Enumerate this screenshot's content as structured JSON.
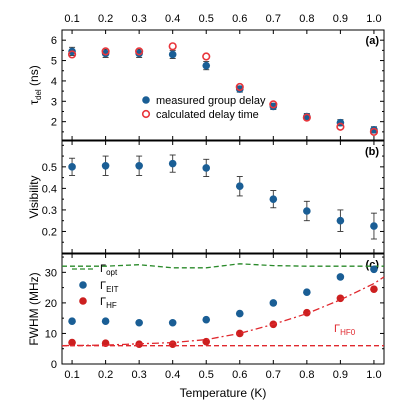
{
  "chart_data": [
    {
      "type": "scatter",
      "panel_label": "(a)",
      "ylabel_main": "τ",
      "ylabel_sub": "del",
      "ylabel_unit": " (ns)",
      "ylim": [
        1.1,
        6.5
      ],
      "yticks": [
        2,
        3,
        4,
        5,
        6
      ],
      "legend_placement": "center-right",
      "series": [
        {
          "name": "measured group delay",
          "marker": "filled-circle",
          "color": "#1a5e95",
          "x": [
            0.1,
            0.2,
            0.3,
            0.4,
            0.5,
            0.6,
            0.7,
            0.8,
            0.9,
            1.0
          ],
          "y": [
            5.45,
            5.35,
            5.35,
            5.3,
            4.75,
            3.6,
            2.75,
            2.25,
            1.95,
            1.6
          ],
          "yerr": [
            0.2,
            0.2,
            0.2,
            0.2,
            0.2,
            0.15,
            0.15,
            0.15,
            0.15,
            0.15
          ]
        },
        {
          "name": "calculated delay time",
          "marker": "open-circle",
          "color": "#e8353b",
          "x": [
            0.1,
            0.2,
            0.3,
            0.4,
            0.5,
            0.6,
            0.7,
            0.8,
            0.9,
            1.0
          ],
          "y": [
            5.3,
            5.45,
            5.45,
            5.7,
            5.2,
            3.7,
            2.85,
            2.2,
            1.75,
            1.5
          ]
        }
      ]
    },
    {
      "type": "scatter",
      "panel_label": "(b)",
      "ylabel": "Visibility",
      "ylim": [
        0.1,
        0.62
      ],
      "yticks": [
        0.2,
        0.3,
        0.4,
        0.5
      ],
      "series": [
        {
          "name": "",
          "marker": "filled-circle",
          "color": "#1a5e95",
          "x": [
            0.1,
            0.2,
            0.3,
            0.4,
            0.5,
            0.6,
            0.7,
            0.8,
            0.9,
            1.0
          ],
          "y": [
            0.5,
            0.505,
            0.505,
            0.515,
            0.495,
            0.41,
            0.35,
            0.295,
            0.25,
            0.225
          ],
          "yerr": [
            0.04,
            0.045,
            0.045,
            0.04,
            0.04,
            0.045,
            0.04,
            0.045,
            0.05,
            0.06
          ]
        }
      ]
    },
    {
      "type": "scatter",
      "panel_label": "(c)",
      "ylabel": "FWHM (MHz)",
      "ylim": [
        0,
        36
      ],
      "yticks": [
        0,
        10,
        20,
        30
      ],
      "xlabel": "Temperature (K)",
      "xlim": [
        0.07,
        1.03
      ],
      "xticks": [
        0.1,
        0.2,
        0.3,
        0.4,
        0.5,
        0.6,
        0.7,
        0.8,
        0.9,
        1.0
      ],
      "legend_placement": "top-left",
      "series": [
        {
          "name_main": "Γ",
          "name_sub": "opt",
          "style": "dashed-line",
          "color": "#2a8a2a",
          "x": [
            0.07,
            0.2,
            0.3,
            0.4,
            0.5,
            0.6,
            0.7,
            0.8,
            0.9,
            1.0,
            1.03
          ],
          "y": [
            32,
            32,
            32.5,
            31.5,
            31.5,
            32.8,
            32.2,
            32,
            32,
            32,
            32
          ]
        },
        {
          "name_main": "Γ",
          "name_sub": "EIT",
          "marker": "filled-circle",
          "color": "#1a5e95",
          "x": [
            0.1,
            0.2,
            0.3,
            0.4,
            0.5,
            0.6,
            0.7,
            0.8,
            0.9,
            1.0
          ],
          "y": [
            14,
            14,
            13.5,
            13.5,
            14.5,
            16.5,
            20,
            23.5,
            28.5,
            31
          ],
          "yerr": [
            0.5,
            0.5,
            0.5,
            0.5,
            0.5,
            0.5,
            0.5,
            0.5,
            0.5,
            0.5
          ]
        },
        {
          "name_main": "Γ",
          "name_sub": "HF",
          "marker": "filled-circle",
          "color": "#cc1f1f",
          "x": [
            0.1,
            0.2,
            0.3,
            0.4,
            0.5,
            0.6,
            0.7,
            0.8,
            0.9,
            1.0
          ],
          "y": [
            7,
            6.8,
            6.5,
            6.5,
            7.3,
            10,
            13,
            16.8,
            21.5,
            24.5
          ],
          "yerr": [
            0.4,
            0.4,
            0.4,
            0.4,
            0.4,
            0.4,
            0.4,
            0.4,
            0.4,
            0.4
          ]
        },
        {
          "name": "",
          "style": "dash-dot-line",
          "color": "#e0282e",
          "x": [
            0.07,
            0.1,
            0.2,
            0.3,
            0.4,
            0.5,
            0.6,
            0.7,
            0.8,
            0.9,
            1.0,
            1.03
          ],
          "y": [
            6.0,
            6.05,
            6.2,
            6.6,
            7.0,
            8.0,
            10.0,
            13.0,
            16.5,
            21.0,
            26.3,
            28.5
          ]
        },
        {
          "name_main": "Γ",
          "name_sub": "HF0",
          "style": "dashed-line",
          "label_placement": "right",
          "color": "#e0282e",
          "x": [
            0.07,
            1.03
          ],
          "y": [
            6,
            6
          ]
        }
      ]
    }
  ]
}
